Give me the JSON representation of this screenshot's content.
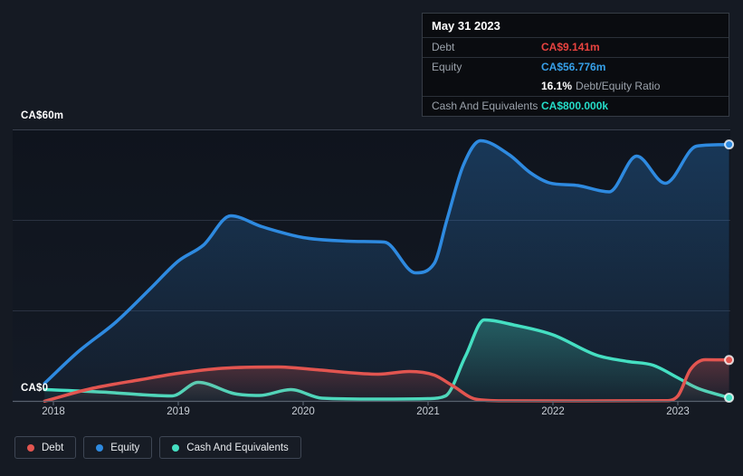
{
  "tooltip": {
    "date": "May 31 2023",
    "rows": {
      "debt": {
        "label": "Debt",
        "value": "CA$9.141m",
        "color": "#e8433f"
      },
      "equity": {
        "label": "Equity",
        "value": "CA$56.776m",
        "color": "#36a0e8"
      },
      "ratio": {
        "value": "16.1%",
        "label": "Debt/Equity Ratio"
      },
      "cash": {
        "label": "Cash And Equivalents",
        "value": "CA$800.000k",
        "color": "#25dcc8"
      }
    }
  },
  "legend": {
    "items": [
      {
        "label": "Debt",
        "color": "#e25550"
      },
      {
        "label": "Equity",
        "color": "#2e8ae0"
      },
      {
        "label": "Cash And Equivalents",
        "color": "#45dfc2"
      }
    ]
  },
  "chart_data": {
    "type": "area",
    "x_unit": "year",
    "x_range": [
      2017.93,
      2023.41
    ],
    "x_ticks": [
      {
        "year": 2018,
        "label": "2018"
      },
      {
        "year": 2019,
        "label": "2019"
      },
      {
        "year": 2020,
        "label": "2020"
      },
      {
        "year": 2021,
        "label": "2021"
      },
      {
        "year": 2022,
        "label": "2022"
      },
      {
        "year": 2023,
        "label": "2023"
      }
    ],
    "y_axis": {
      "min": 0,
      "max": 60,
      "unit": "CA$ millions",
      "gridline_values": [
        20,
        40,
        60
      ],
      "label_top": "CA$60m",
      "label_zero": "CA$0"
    },
    "series": [
      {
        "name": "Debt",
        "color": "#e25550",
        "points": [
          [
            2017.93,
            0.05
          ],
          [
            2018.3,
            2.8
          ],
          [
            2018.7,
            4.8
          ],
          [
            2019.0,
            6.2
          ],
          [
            2019.35,
            7.3
          ],
          [
            2019.8,
            7.6
          ],
          [
            2020.1,
            7.0
          ],
          [
            2020.6,
            6.0
          ],
          [
            2020.85,
            6.6
          ],
          [
            2021.05,
            5.8
          ],
          [
            2021.2,
            3.4
          ],
          [
            2021.38,
            0.5
          ],
          [
            2021.6,
            0.12
          ],
          [
            2022.2,
            0.1
          ],
          [
            2022.9,
            0.15
          ],
          [
            2023.0,
            1.2
          ],
          [
            2023.1,
            7.0
          ],
          [
            2023.22,
            9.2
          ],
          [
            2023.41,
            9.141
          ]
        ]
      },
      {
        "name": "Equity",
        "color": "#2e8ae0",
        "points": [
          [
            2017.93,
            4.0
          ],
          [
            2018.2,
            11.0
          ],
          [
            2018.5,
            17.5
          ],
          [
            2018.78,
            25.0
          ],
          [
            2019.0,
            31.0
          ],
          [
            2019.2,
            34.5
          ],
          [
            2019.42,
            41.0
          ],
          [
            2019.67,
            38.6
          ],
          [
            2020.0,
            36.2
          ],
          [
            2020.35,
            35.4
          ],
          [
            2020.65,
            35.2
          ],
          [
            2020.9,
            28.4
          ],
          [
            2021.05,
            30.5
          ],
          [
            2021.15,
            40.0
          ],
          [
            2021.28,
            52.0
          ],
          [
            2021.42,
            57.6
          ],
          [
            2021.65,
            54.5
          ],
          [
            2021.82,
            50.5
          ],
          [
            2021.97,
            48.3
          ],
          [
            2022.2,
            47.7
          ],
          [
            2022.45,
            46.3
          ],
          [
            2022.67,
            54.2
          ],
          [
            2022.9,
            48.2
          ],
          [
            2023.15,
            56.4
          ],
          [
            2023.41,
            56.776
          ]
        ]
      },
      {
        "name": "Cash And Equivalents",
        "color": "#45dfc2",
        "points": [
          [
            2017.93,
            2.6
          ],
          [
            2018.4,
            2.05
          ],
          [
            2018.75,
            1.4
          ],
          [
            2018.95,
            1.2
          ],
          [
            2019.16,
            4.2
          ],
          [
            2019.45,
            1.7
          ],
          [
            2019.65,
            1.3
          ],
          [
            2019.9,
            2.6
          ],
          [
            2020.15,
            0.7
          ],
          [
            2020.6,
            0.5
          ],
          [
            2021.0,
            0.6
          ],
          [
            2021.14,
            1.2
          ],
          [
            2021.3,
            10.0
          ],
          [
            2021.45,
            18.0
          ],
          [
            2021.7,
            16.8
          ],
          [
            2022.0,
            14.7
          ],
          [
            2022.35,
            10.2
          ],
          [
            2022.6,
            8.8
          ],
          [
            2022.8,
            8.0
          ],
          [
            2023.0,
            5.2
          ],
          [
            2023.15,
            3.0
          ],
          [
            2023.41,
            0.8
          ]
        ]
      }
    ],
    "last_values": {
      "Debt": 9.141,
      "Equity": 56.776,
      "Cash And Equivalents": 0.8
    }
  }
}
